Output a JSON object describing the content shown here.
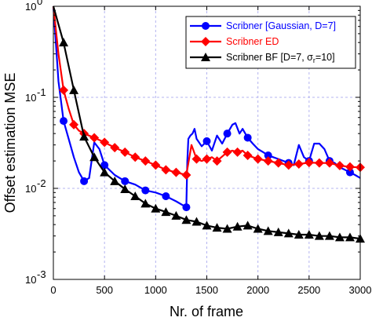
{
  "chart_data": {
    "type": "line",
    "xlabel": "Nr. of frame",
    "ylabel": "Offset estimation MSE",
    "xlim": [
      0,
      3000
    ],
    "ylim": [
      0.001,
      1
    ],
    "yscale": "log",
    "grid": true,
    "legend_position": "top-right",
    "x_ticks": [
      "0",
      "500",
      "1000",
      "1500",
      "2000",
      "2500",
      "3000"
    ],
    "x_tick_values": [
      0,
      500,
      1000,
      1500,
      2000,
      2500,
      3000
    ],
    "y_ticks": [
      {
        "value": 1,
        "base": "10",
        "exp": "0"
      },
      {
        "value": 0.1,
        "base": "10",
        "exp": "-1"
      },
      {
        "value": 0.01,
        "base": "10",
        "exp": "-2"
      },
      {
        "value": 0.001,
        "base": "10",
        "exp": "-3"
      }
    ],
    "series": [
      {
        "name": "Scribner [Gaussian, D=7]",
        "color": "#0000ff",
        "marker": "circle",
        "x": [
          0,
          50,
          100,
          150,
          200,
          250,
          300,
          350,
          400,
          450,
          500,
          600,
          700,
          800,
          900,
          1000,
          1100,
          1200,
          1300,
          1310,
          1320,
          1340,
          1360,
          1380,
          1400,
          1450,
          1500,
          1550,
          1600,
          1650,
          1700,
          1750,
          1780,
          1820,
          1850,
          1900,
          1950,
          2000,
          2050,
          2100,
          2150,
          2200,
          2250,
          2300,
          2350,
          2400,
          2450,
          2500,
          2550,
          2600,
          2650,
          2700,
          2750,
          2800,
          2850,
          2900,
          2950,
          3000
        ],
        "y": [
          1.0,
          0.15,
          0.055,
          0.035,
          0.022,
          0.015,
          0.012,
          0.013,
          0.032,
          0.027,
          0.018,
          0.014,
          0.012,
          0.011,
          0.0095,
          0.009,
          0.0082,
          0.0072,
          0.0062,
          0.02,
          0.035,
          0.038,
          0.04,
          0.045,
          0.035,
          0.029,
          0.033,
          0.026,
          0.038,
          0.031,
          0.04,
          0.05,
          0.052,
          0.04,
          0.045,
          0.036,
          0.031,
          0.027,
          0.025,
          0.023,
          0.022,
          0.021,
          0.02,
          0.019,
          0.018,
          0.03,
          0.022,
          0.02,
          0.031,
          0.031,
          0.027,
          0.02,
          0.019,
          0.017,
          0.016,
          0.015,
          0.014,
          0.013
        ]
      },
      {
        "name": "Scribner ED",
        "color": "#ff0000",
        "marker": "diamond",
        "x": [
          0,
          50,
          100,
          150,
          200,
          250,
          300,
          400,
          500,
          600,
          700,
          800,
          900,
          1000,
          1100,
          1200,
          1300,
          1350,
          1400,
          1450,
          1500,
          1550,
          1600,
          1700,
          1750,
          1800,
          1850,
          1900,
          2000,
          2100,
          2200,
          2300,
          2400,
          2500,
          2600,
          2700,
          2800,
          2900,
          3000
        ],
        "y": [
          1.0,
          0.3,
          0.12,
          0.075,
          0.05,
          0.043,
          0.04,
          0.036,
          0.032,
          0.028,
          0.025,
          0.022,
          0.02,
          0.018,
          0.016,
          0.015,
          0.014,
          0.03,
          0.021,
          0.02,
          0.021,
          0.022,
          0.02,
          0.025,
          0.026,
          0.025,
          0.026,
          0.023,
          0.021,
          0.02,
          0.019,
          0.018,
          0.0185,
          0.0192,
          0.019,
          0.019,
          0.0178,
          0.0172,
          0.017
        ]
      },
      {
        "name": "Scribner BF [D=7, σr=10]",
        "color": "#000000",
        "marker": "triangle",
        "x": [
          0,
          100,
          200,
          300,
          400,
          500,
          600,
          700,
          800,
          900,
          1000,
          1100,
          1200,
          1300,
          1400,
          1500,
          1600,
          1700,
          1800,
          1900,
          2000,
          2100,
          2200,
          2300,
          2400,
          2500,
          2600,
          2700,
          2800,
          2900,
          3000
        ],
        "y": [
          1.0,
          0.4,
          0.12,
          0.037,
          0.022,
          0.015,
          0.012,
          0.0098,
          0.0082,
          0.0068,
          0.006,
          0.0055,
          0.005,
          0.0045,
          0.0043,
          0.0039,
          0.0037,
          0.0036,
          0.0038,
          0.0039,
          0.0036,
          0.0034,
          0.0033,
          0.0032,
          0.0031,
          0.0031,
          0.003,
          0.003,
          0.0029,
          0.0029,
          0.0028
        ]
      }
    ]
  },
  "legend": {
    "entries": [
      {
        "text": "Scribner [Gaussian, D=7]",
        "color": "#0000ff"
      },
      {
        "text": "Scribner ED",
        "color": "#ff0000"
      },
      {
        "text": "Scribner BF [D=7, σ",
        "sub": "r",
        "suffix": "=10]",
        "color": "#000000"
      }
    ]
  },
  "colors": {
    "grid": "#b4b4f0",
    "axes": "#000000"
  }
}
